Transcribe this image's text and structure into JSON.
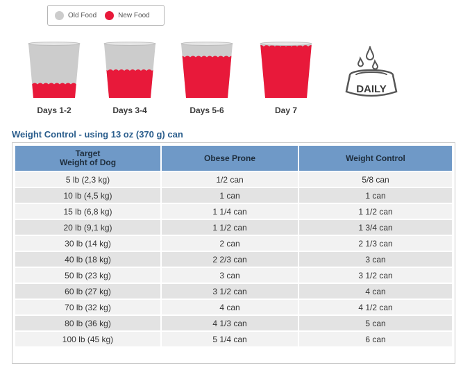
{
  "legend": {
    "items": [
      {
        "label": "Old Food",
        "color": "#cccccc"
      },
      {
        "label": "New Food",
        "color": "#e8193a"
      }
    ]
  },
  "transition": {
    "cups": [
      {
        "label": "Days 1-2",
        "new_food_fraction": 0.25
      },
      {
        "label": "Days 3-4",
        "new_food_fraction": 0.5
      },
      {
        "label": "Days 5-6",
        "new_food_fraction": 0.75
      },
      {
        "label": "Day 7",
        "new_food_fraction": 1.0
      }
    ],
    "daily_label": "DAILY"
  },
  "section_title": "Weight Control - using 13 oz (370 g) can",
  "table": {
    "headers": [
      "Target\nWeight of Dog",
      "Obese Prone",
      "Weight Control"
    ],
    "rows": [
      [
        "5 lb (2,3 kg)",
        "1/2 can",
        "5/8 can"
      ],
      [
        "10 lb (4,5 kg)",
        "1 can",
        "1 can"
      ],
      [
        "15 lb (6,8 kg)",
        "1 1/4 can",
        "1 1/2 can"
      ],
      [
        "20 lb (9,1 kg)",
        "1 1/2 can",
        "1 3/4 can"
      ],
      [
        "30 lb (14 kg)",
        "2 can",
        "2 1/3 can"
      ],
      [
        "40 lb (18 kg)",
        "2 2/3 can",
        "3 can"
      ],
      [
        "50 lb (23 kg)",
        "3 can",
        "3 1/2 can"
      ],
      [
        "60 lb (27 kg)",
        "3 1/2 can",
        "4 can"
      ],
      [
        "70 lb (32 kg)",
        "4 can",
        "4 1/2 can"
      ],
      [
        "80 lb (36 kg)",
        "4 1/3 can",
        "5 can"
      ],
      [
        "100 lb (45 kg)",
        "5 1/4 can",
        "6 can"
      ]
    ]
  },
  "colors": {
    "accent_title": "#2a5d8c",
    "header_bg": "#6f99c7"
  }
}
